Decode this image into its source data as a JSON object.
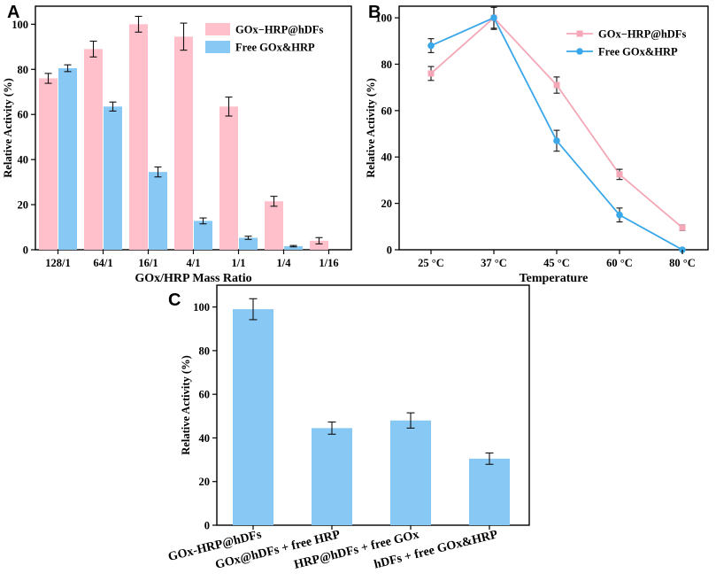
{
  "colors": {
    "gox_hrp_hdfs": "#ffbfcb",
    "gox_hrp_hdfs_line": "#f4a7b6",
    "free": "#87c8f5",
    "free_line": "#3aa7e8"
  },
  "chart_data": [
    {
      "panel": "A",
      "type": "bar",
      "title": "",
      "xlabel": "GOx/HRP Mass Ratio",
      "ylabel": "Relative Activity (%)",
      "ylim": [
        0,
        108
      ],
      "yticks": [
        0,
        20,
        40,
        60,
        80,
        100
      ],
      "legend_position": "top-right",
      "categories": [
        "128/1",
        "64/1",
        "16/1",
        "4/1",
        "1/1",
        "1/4",
        "1/16"
      ],
      "series": [
        {
          "name": "GOx−HRP@hDFs",
          "color_key": "gox_hrp_hdfs",
          "values": [
            76,
            89,
            100,
            94.5,
            63.5,
            21.5,
            4
          ],
          "errors": [
            2.2,
            3.5,
            3.5,
            6,
            4.2,
            2.2,
            1.4
          ]
        },
        {
          "name": "Free GOx&HRP",
          "color_key": "free",
          "values": [
            80.5,
            63.5,
            34.5,
            12.8,
            5.3,
            1.6,
            null
          ],
          "errors": [
            1.5,
            2,
            2.2,
            1.3,
            0.7,
            0.3,
            null
          ]
        }
      ]
    },
    {
      "panel": "B",
      "type": "line",
      "title": "",
      "xlabel": "Temperature",
      "ylabel": "Relative Activity (%)",
      "ylim": [
        0,
        105
      ],
      "yticks": [
        0,
        20,
        40,
        60,
        80,
        100
      ],
      "legend_position": "top-right",
      "categories": [
        "25 °C",
        "37 °C",
        "45 °C",
        "60 °C",
        "80 °C"
      ],
      "series": [
        {
          "name": "GOx−HRP@hDFs",
          "color_key": "gox_hrp_hdfs_line",
          "marker": "square",
          "values": [
            76,
            100,
            71,
            32.5,
            9.5
          ],
          "errors": [
            3,
            4.5,
            3.5,
            2.2,
            1.2
          ]
        },
        {
          "name": "Free GOx&HRP",
          "color_key": "free_line",
          "marker": "circle",
          "values": [
            88,
            100,
            47,
            15,
            0
          ],
          "errors": [
            3,
            5,
            4.5,
            3,
            0.3
          ]
        }
      ]
    },
    {
      "panel": "C",
      "type": "bar",
      "title": "",
      "xlabel": "",
      "ylabel": "Relative Activity (%)",
      "ylim": [
        0,
        110
      ],
      "yticks": [
        0,
        20,
        40,
        60,
        80,
        100
      ],
      "categories": [
        "GOx-HRP@hDFs",
        "GOx@hDFs + free HRP",
        "HRP@hDFs + free GOx",
        "hDFs + free GOx&HRP"
      ],
      "series": [
        {
          "name": "Relative Activity",
          "color_key": "free",
          "values": [
            99,
            44.5,
            48,
            30.5
          ],
          "errors": [
            4.8,
            2.8,
            3.5,
            2.6
          ]
        }
      ]
    }
  ]
}
